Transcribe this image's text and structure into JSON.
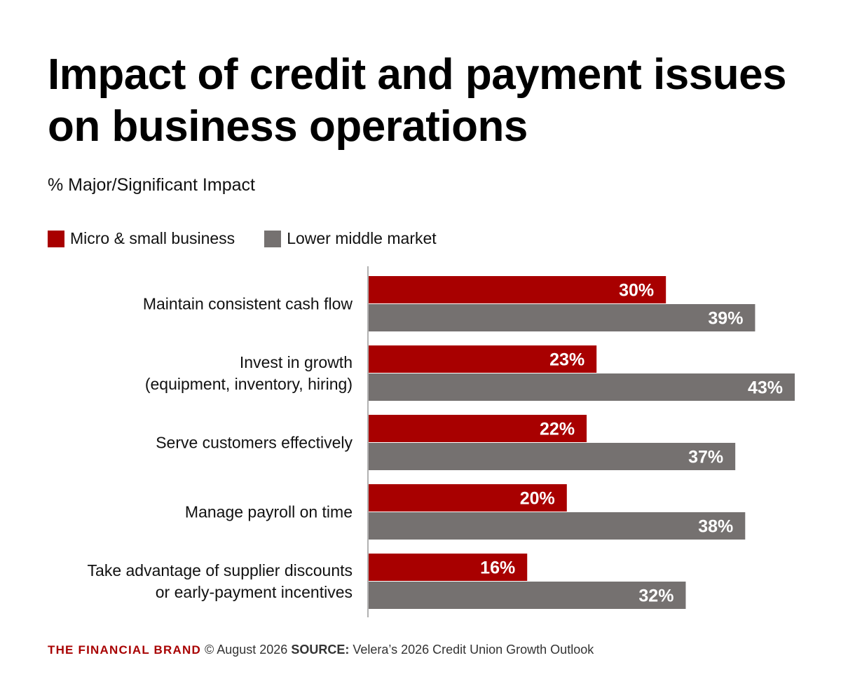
{
  "title": "Impact of credit and payment issues on business operations",
  "subtitle": "% Major/Significant Impact",
  "colors": {
    "series1": "#a80000",
    "series2": "#757170",
    "axis": "#999999"
  },
  "chart_data": {
    "type": "bar",
    "orientation": "horizontal",
    "categories": [
      [
        "Maintain consistent cash flow"
      ],
      [
        "Invest in growth",
        "(equipment, inventory, hiring)"
      ],
      [
        "Serve customers effectively"
      ],
      [
        "Manage payroll on time"
      ],
      [
        "Take advantage of supplier discounts",
        "or early-payment incentives"
      ]
    ],
    "series": [
      {
        "name": "Micro & small business",
        "values": [
          30,
          23,
          22,
          20,
          16
        ],
        "color": "#a80000"
      },
      {
        "name": "Lower middle market",
        "values": [
          39,
          43,
          37,
          38,
          32
        ],
        "color": "#757170"
      }
    ],
    "value_suffix": "%",
    "xlim": [
      0,
      43
    ],
    "grid": false,
    "legend_position": "top-left"
  },
  "footer": {
    "brand": "THE FINANCIAL BRAND",
    "date": "© August 2026",
    "source_label": "SOURCE:",
    "source_text": "Velera’s 2026 Credit Union Growth Outlook"
  }
}
